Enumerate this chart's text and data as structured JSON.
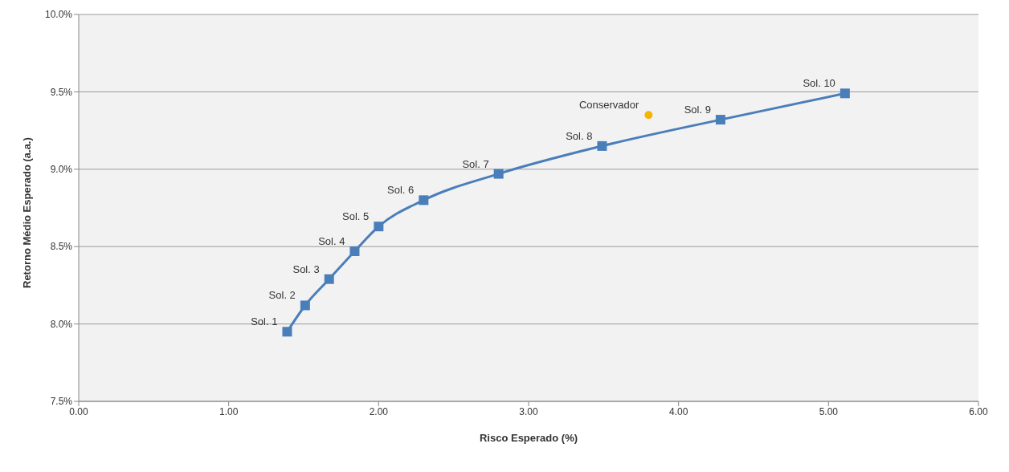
{
  "chart_data": {
    "type": "line",
    "xlabel": "Risco Esperado (%)",
    "ylabel": "Retorno Médio Esperado (a.a.)",
    "xlim": [
      0,
      6
    ],
    "xticks": [
      {
        "value": 0,
        "label": "0.00"
      },
      {
        "value": 1,
        "label": "1.00"
      },
      {
        "value": 2,
        "label": "2.00"
      },
      {
        "value": 3,
        "label": "3.00"
      },
      {
        "value": 4,
        "label": "4.00"
      },
      {
        "value": 5,
        "label": "5.00"
      },
      {
        "value": 6,
        "label": "6.00"
      }
    ],
    "ylim": [
      7.5,
      10
    ],
    "yticks": [
      {
        "value": 7.5,
        "label": "7.5%"
      },
      {
        "value": 8,
        "label": "8.0%"
      },
      {
        "value": 8.5,
        "label": "8.5%"
      },
      {
        "value": 9,
        "label": "9.0%"
      },
      {
        "value": 9.5,
        "label": "9.5%"
      },
      {
        "value": 10,
        "label": "10.0%"
      }
    ],
    "grid": "y",
    "series": [
      {
        "color": "#4a7ebb",
        "marker": "square",
        "line_style": "solid",
        "x": [
          1.39,
          1.51,
          1.67,
          1.84,
          2.0,
          2.3,
          2.8,
          3.49,
          4.28,
          5.11
        ],
        "values": [
          7.95,
          8.12,
          8.29,
          8.47,
          8.63,
          8.8,
          8.97,
          9.15,
          9.32,
          9.49
        ]
      },
      {
        "type": "scatter",
        "color": "#f5b400",
        "marker": "circle",
        "x": [
          3.8
        ],
        "values": [
          9.35
        ]
      }
    ],
    "annotations": [
      {
        "text": "Sol. 1",
        "x": 1.39,
        "y": 7.95
      },
      {
        "text": "Sol. 2",
        "x": 1.51,
        "y": 8.12
      },
      {
        "text": "Sol. 3",
        "x": 1.67,
        "y": 8.29
      },
      {
        "text": "Sol. 4",
        "x": 1.84,
        "y": 8.47
      },
      {
        "text": "Sol. 5",
        "x": 2.0,
        "y": 8.63
      },
      {
        "text": "Sol. 6",
        "x": 2.3,
        "y": 8.8
      },
      {
        "text": "Sol. 7",
        "x": 2.8,
        "y": 8.97
      },
      {
        "text": "Sol. 8",
        "x": 3.49,
        "y": 9.15
      },
      {
        "text": "Sol. 9",
        "x": 4.28,
        "y": 9.32
      },
      {
        "text": "Sol. 10",
        "x": 5.11,
        "y": 9.49
      },
      {
        "text": "Conservador",
        "x": 3.8,
        "y": 9.35
      }
    ]
  }
}
